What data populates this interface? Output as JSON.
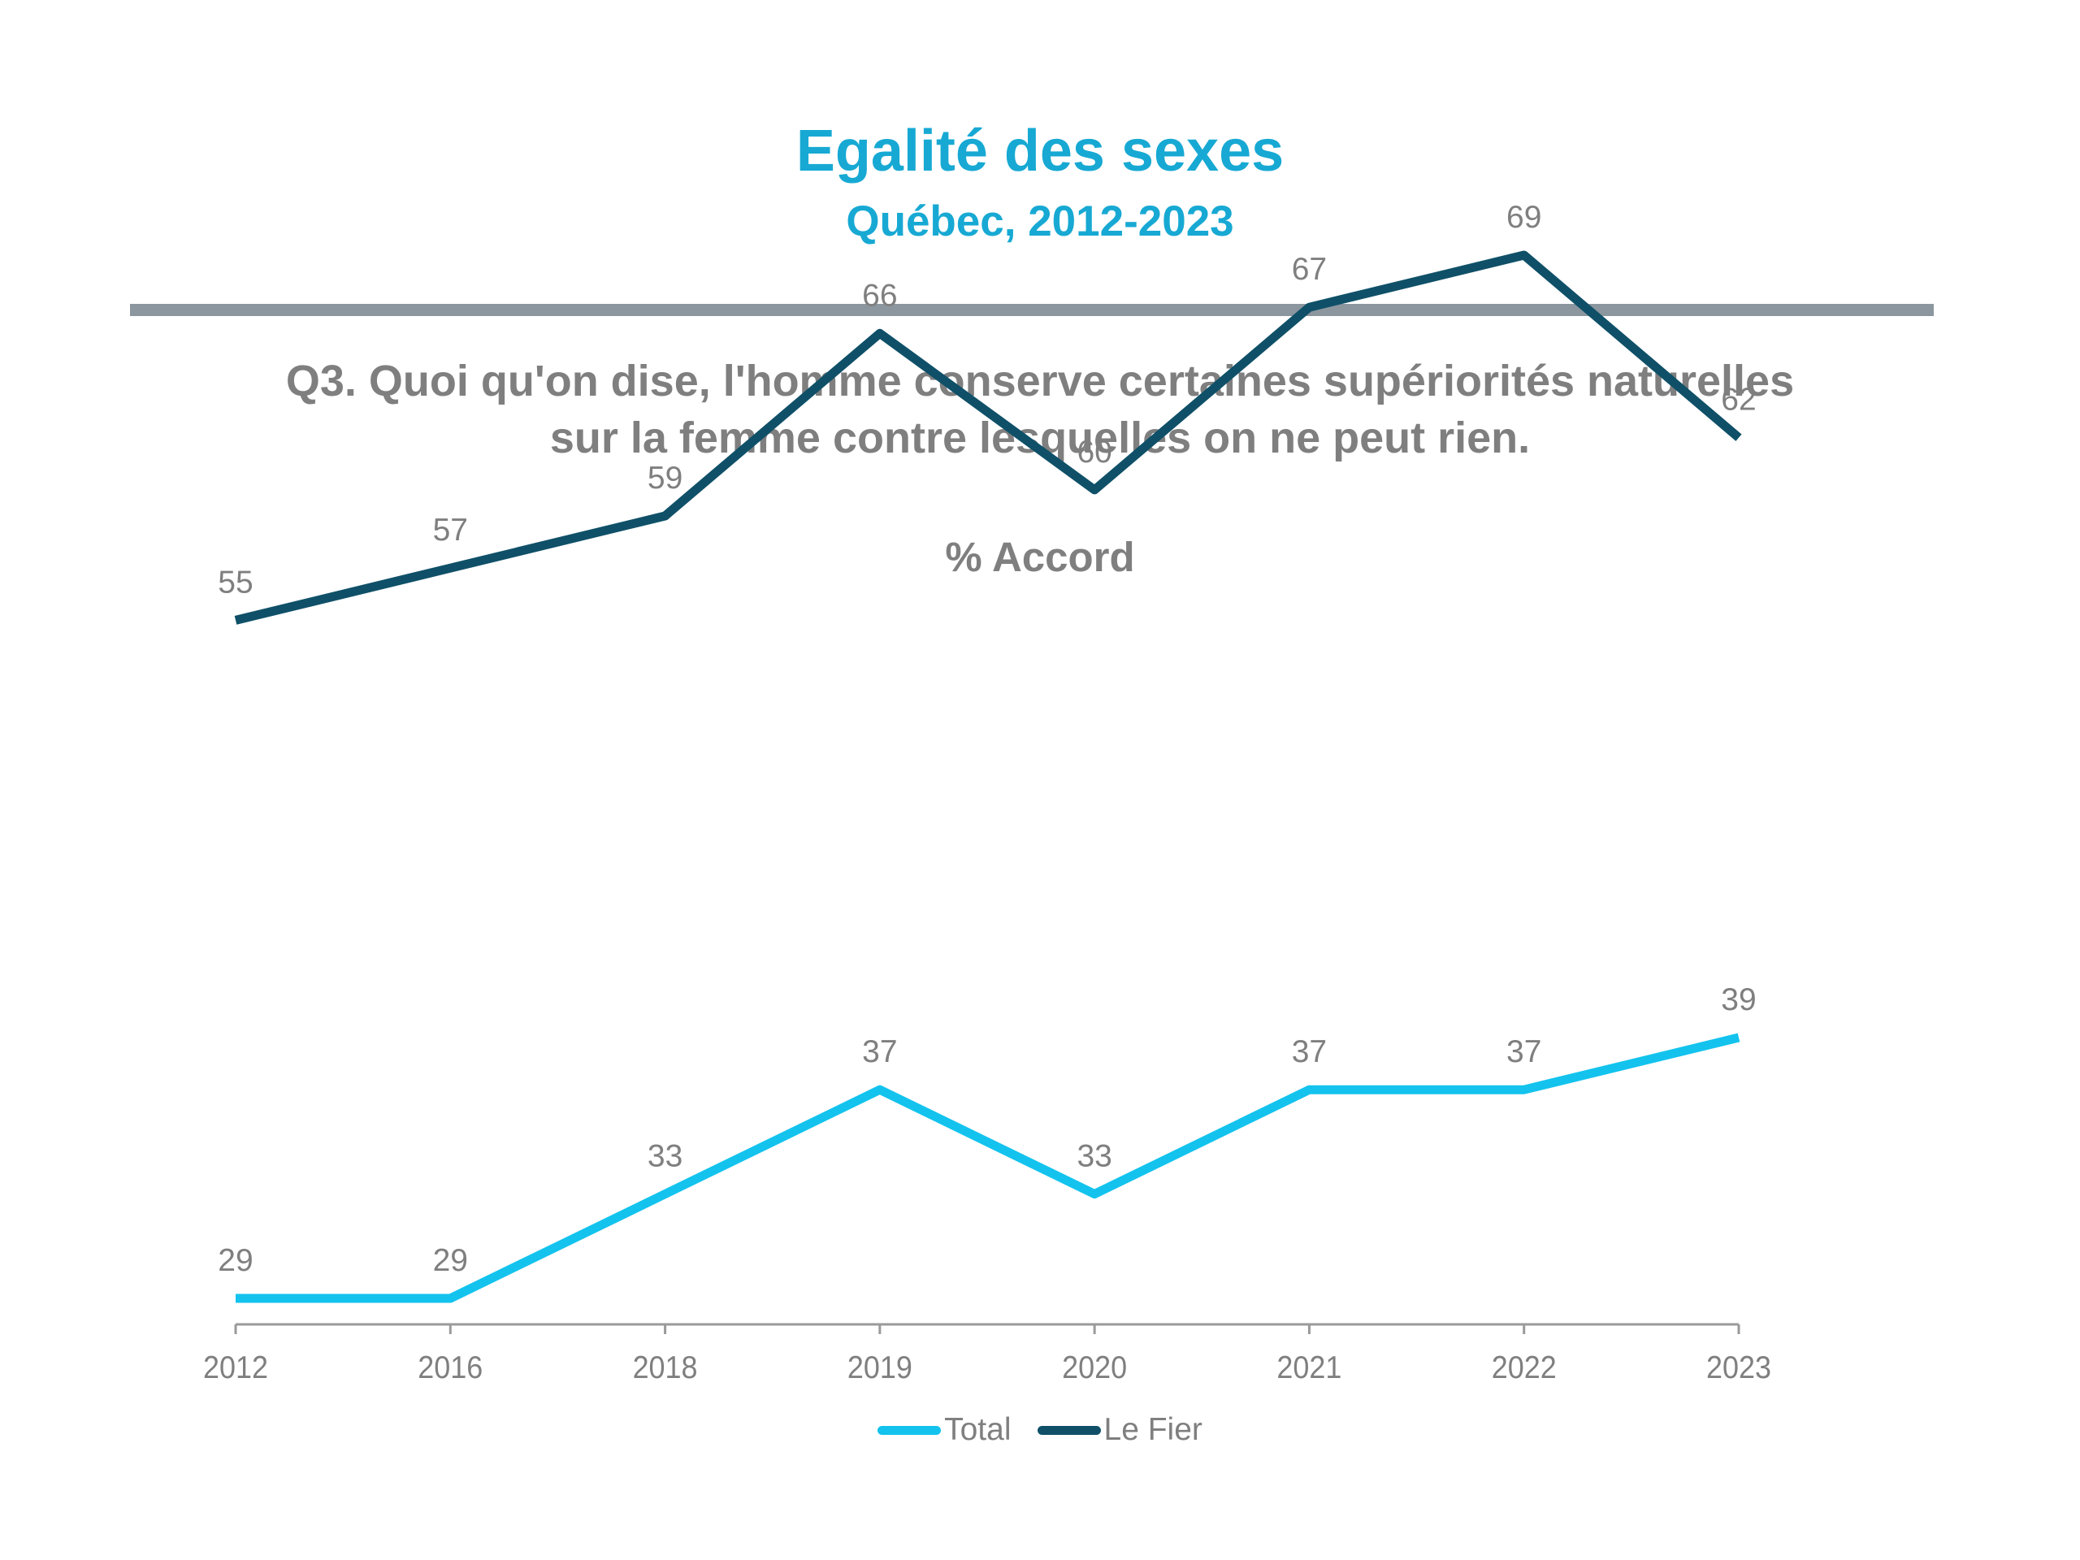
{
  "header": {
    "title": "Egalité des sexes",
    "subtitle": "Québec, 2012-2023"
  },
  "question": {
    "line1": "Q3. Quoi qu'on dise, l'homme conserve certaines supériorités naturelles",
    "line2": "sur la femme contre lesquelles on ne peut rien."
  },
  "measure_label": "% Accord",
  "colors": {
    "title": "#17a9d3",
    "rule": "#8c969f",
    "text": "#7f7f7f",
    "total": "#13c3ee",
    "lefier": "#0f5068"
  },
  "chart_data": {
    "type": "line",
    "title": "Egalité des sexes",
    "subtitle": "Québec, 2012-2023",
    "ylabel": "% Accord",
    "xlabel": "",
    "categories": [
      "2012",
      "2016",
      "2018",
      "2019",
      "2020",
      "2021",
      "2022",
      "2023"
    ],
    "series": [
      {
        "name": "Total",
        "color": "#13c3ee",
        "values": [
          29,
          29,
          33,
          37,
          33,
          37,
          37,
          39
        ]
      },
      {
        "name": "Le Fier",
        "color": "#0f5068",
        "values": [
          55,
          57,
          59,
          66,
          60,
          67,
          69,
          62
        ]
      }
    ],
    "ylim": [
      27,
      75
    ],
    "grid": false,
    "legend_position": "bottom-center"
  }
}
